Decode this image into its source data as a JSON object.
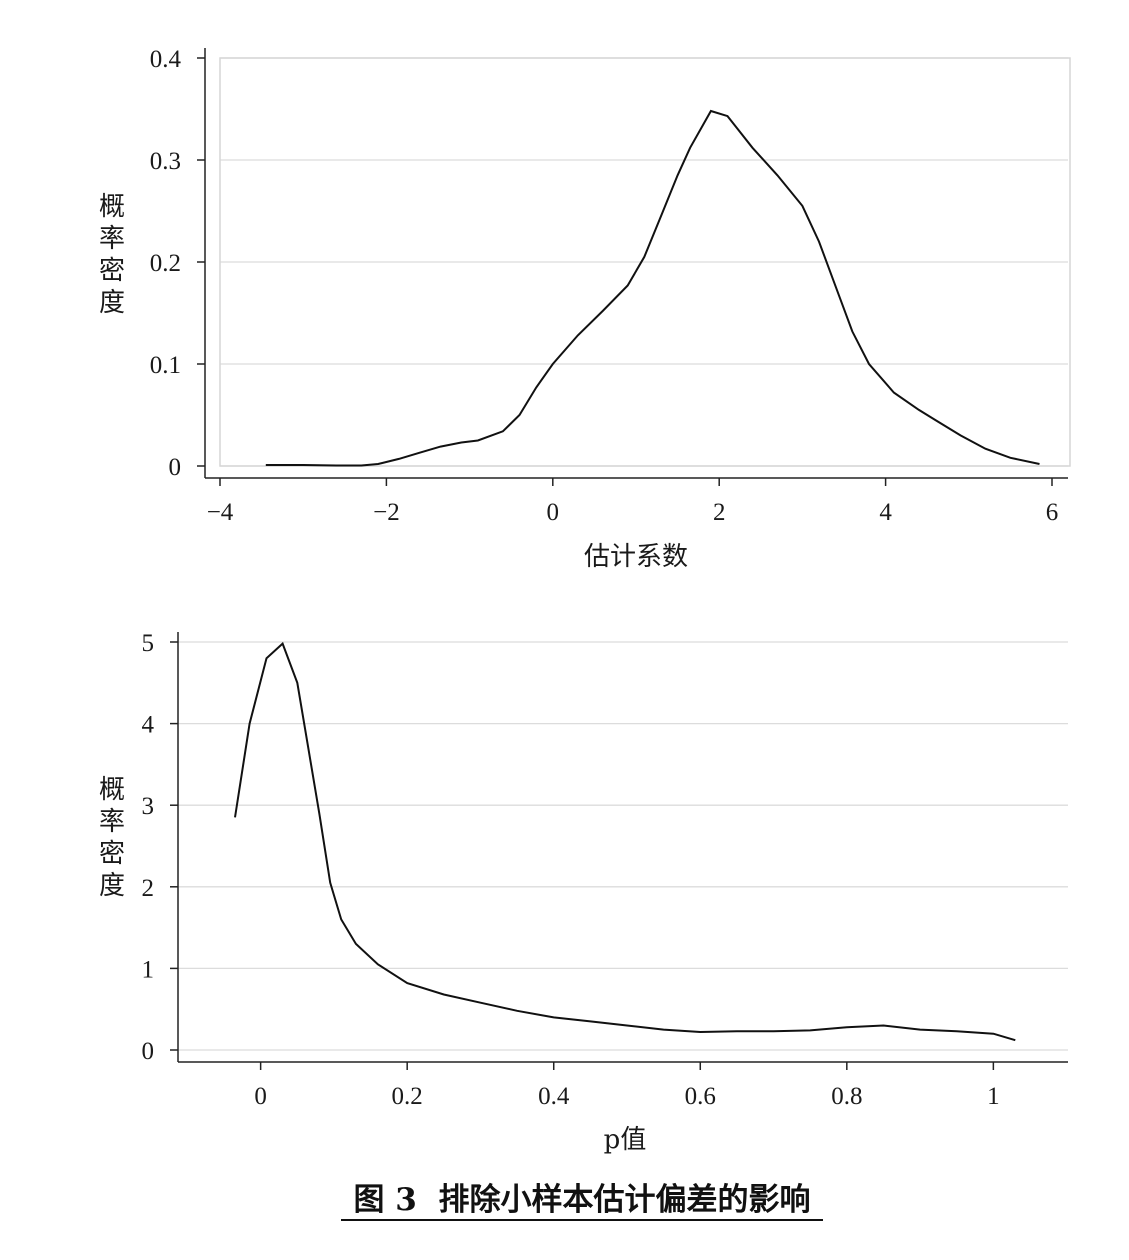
{
  "chart_data": [
    {
      "type": "line",
      "xlabel": "估计系数",
      "ylabel": "概率密度",
      "xlim": [
        -4,
        6
      ],
      "ylim": [
        0,
        0.4
      ],
      "xticks": [
        "−4",
        "−2",
        "0",
        "2",
        "4",
        "6"
      ],
      "yticks": [
        "0",
        "0.1",
        "0.2",
        "0.3",
        "0.4"
      ],
      "grid": true,
      "x": [
        -3.45,
        -3.0,
        -2.6,
        -2.3,
        -2.1,
        -1.85,
        -1.6,
        -1.35,
        -1.1,
        -0.9,
        -0.6,
        -0.4,
        -0.2,
        0.0,
        0.3,
        0.6,
        0.9,
        1.1,
        1.3,
        1.5,
        1.65,
        1.9,
        2.1,
        2.4,
        2.7,
        3.0,
        3.2,
        3.45,
        3.6,
        3.8,
        4.1,
        4.4,
        4.6,
        4.9,
        5.2,
        5.5,
        5.85
      ],
      "y": [
        0.001,
        0.001,
        0.0005,
        0.0005,
        0.002,
        0.007,
        0.013,
        0.019,
        0.023,
        0.025,
        0.034,
        0.05,
        0.077,
        0.1,
        0.128,
        0.152,
        0.177,
        0.205,
        0.245,
        0.285,
        0.312,
        0.348,
        0.343,
        0.312,
        0.285,
        0.255,
        0.22,
        0.165,
        0.132,
        0.1,
        0.072,
        0.055,
        0.045,
        0.03,
        0.017,
        0.008,
        0.002
      ]
    },
    {
      "type": "line",
      "xlabel": "p值",
      "ylabel": "概率密度",
      "xlim": [
        -0.05,
        1.05
      ],
      "ylim": [
        0,
        5
      ],
      "xticks": [
        "0",
        "0.2",
        "0.4",
        "0.6",
        "0.8",
        "1"
      ],
      "yticks": [
        "0",
        "1",
        "2",
        "3",
        "4",
        "5"
      ],
      "grid": true,
      "x": [
        -0.035,
        -0.015,
        0.008,
        0.03,
        0.05,
        0.065,
        0.08,
        0.095,
        0.11,
        0.13,
        0.16,
        0.2,
        0.25,
        0.3,
        0.35,
        0.4,
        0.45,
        0.5,
        0.55,
        0.6,
        0.65,
        0.7,
        0.75,
        0.8,
        0.85,
        0.9,
        0.95,
        1.0,
        1.03
      ],
      "y": [
        2.85,
        4.0,
        4.8,
        4.98,
        4.5,
        3.7,
        2.9,
        2.05,
        1.6,
        1.3,
        1.05,
        0.82,
        0.68,
        0.58,
        0.48,
        0.4,
        0.35,
        0.3,
        0.25,
        0.22,
        0.23,
        0.23,
        0.24,
        0.28,
        0.3,
        0.25,
        0.23,
        0.2,
        0.12
      ]
    }
  ],
  "caption": "图 3  排除小样本估计偏差的影响"
}
